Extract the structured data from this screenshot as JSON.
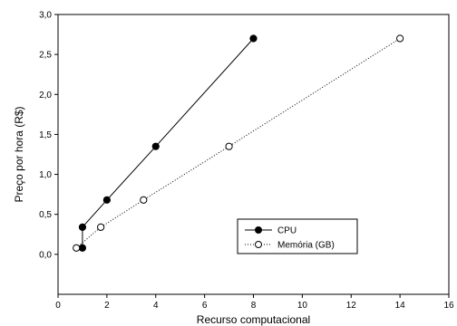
{
  "chart_data": {
    "type": "line",
    "title": "",
    "xlabel": "Recurso computacional",
    "ylabel": "Preço por hora (R$)",
    "xlim": [
      0,
      16
    ],
    "ylim": [
      -0.5,
      3.0
    ],
    "x_ticks": [
      0,
      2,
      4,
      6,
      8,
      10,
      12,
      14,
      16
    ],
    "y_ticks": [
      0.0,
      0.5,
      1.0,
      1.5,
      2.0,
      2.5,
      3.0
    ],
    "x_tick_labels": [
      "0",
      "2",
      "4",
      "6",
      "8",
      "10",
      "12",
      "14",
      "16"
    ],
    "y_tick_labels": [
      "0,0",
      "0,5",
      "1,0",
      "1,5",
      "2,0",
      "2,5",
      "3,0"
    ],
    "grid": false,
    "legend_position": "bottom-right",
    "series": [
      {
        "name": "CPU",
        "marker": "filled-circle",
        "line_style": "solid",
        "color": "#000000",
        "points": [
          [
            1,
            0.08
          ],
          [
            1,
            0.34
          ],
          [
            2,
            0.68
          ],
          [
            4,
            1.35
          ],
          [
            8,
            2.7
          ]
        ]
      },
      {
        "name": "Memória (GB)",
        "marker": "open-circle",
        "line_style": "dotted",
        "color": "#000000",
        "points": [
          [
            0.75,
            0.08
          ],
          [
            1.75,
            0.34
          ],
          [
            3.5,
            0.68
          ],
          [
            7,
            1.35
          ],
          [
            14,
            2.7
          ]
        ]
      }
    ]
  }
}
